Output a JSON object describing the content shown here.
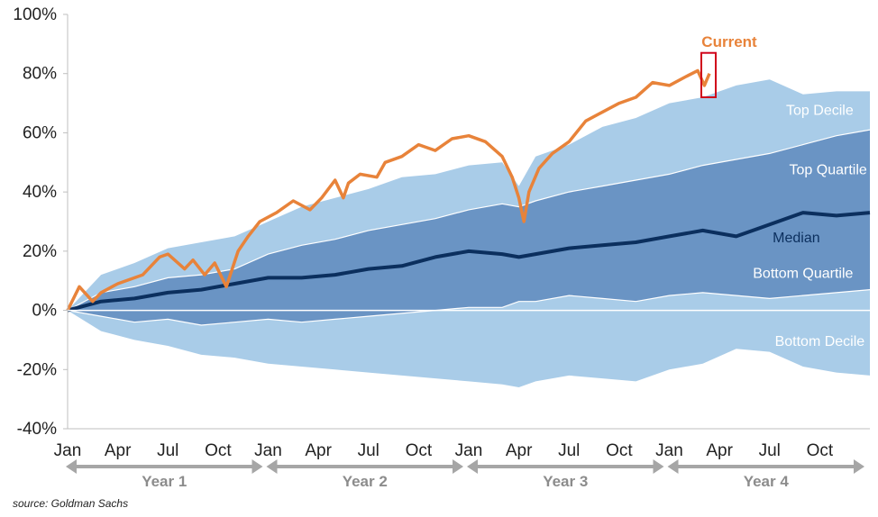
{
  "chart_data": {
    "type": "area",
    "source": "source: Goldman Sachs",
    "ylim": [
      -40,
      100
    ],
    "y_ticks": [
      -40,
      -20,
      0,
      20,
      40,
      60,
      80,
      100
    ],
    "y_tick_labels": [
      "-40%",
      "-20%",
      "0%",
      "20%",
      "40%",
      "60%",
      "80%",
      "100%"
    ],
    "x_month_labels": [
      "Jan",
      "Apr",
      "Jul",
      "Oct",
      "Jan",
      "Apr",
      "Jul",
      "Oct",
      "Jan",
      "Apr",
      "Jul",
      "Oct",
      "Jan",
      "Apr",
      "Jul",
      "Oct"
    ],
    "x_month_positions": [
      0,
      3,
      6,
      9,
      12,
      15,
      18,
      21,
      24,
      27,
      30,
      33,
      36,
      39,
      42,
      45
    ],
    "x_max_month": 48,
    "year_labels": [
      "Year 1",
      "Year 2",
      "Year 3",
      "Year 4"
    ],
    "bands": [
      {
        "name": "Top Decile",
        "color": "#a9cce8",
        "label_x": 45,
        "label_y": 66
      },
      {
        "name": "Top Quartile",
        "color": "#6a94c4",
        "label_x": 45.5,
        "label_y": 46
      },
      {
        "name": "Bottom Quartile",
        "color": "#6a94c4",
        "label_x": 44,
        "label_y": 11
      },
      {
        "name": "Bottom Decile",
        "color": "#a9cce8",
        "label_x": 45,
        "label_y": -12
      }
    ],
    "series": [
      {
        "name": "Top Decile",
        "x": [
          0,
          2,
          4,
          6,
          8,
          10,
          12,
          14,
          16,
          18,
          20,
          22,
          24,
          26,
          27,
          28,
          30,
          32,
          34,
          36,
          38,
          40,
          42,
          44,
          46,
          48
        ],
        "values": [
          0,
          12,
          16,
          21,
          23,
          25,
          30,
          35,
          38,
          41,
          45,
          46,
          49,
          50,
          42,
          52,
          56,
          62,
          65,
          70,
          72,
          76,
          78,
          73,
          74,
          74
        ]
      },
      {
        "name": "Top Quartile",
        "x": [
          0,
          2,
          4,
          6,
          8,
          10,
          12,
          14,
          16,
          18,
          20,
          22,
          24,
          26,
          27,
          28,
          30,
          32,
          34,
          36,
          38,
          40,
          42,
          44,
          46,
          48
        ],
        "values": [
          0,
          6,
          8,
          11,
          12,
          14,
          19,
          22,
          24,
          27,
          29,
          31,
          34,
          36,
          35,
          37,
          40,
          42,
          44,
          46,
          49,
          51,
          53,
          56,
          59,
          61
        ]
      },
      {
        "name": "Median",
        "x": [
          0,
          2,
          4,
          6,
          8,
          10,
          12,
          14,
          16,
          18,
          20,
          22,
          24,
          26,
          27,
          28,
          30,
          32,
          34,
          36,
          38,
          40,
          42,
          44,
          46,
          48
        ],
        "values": [
          0,
          3,
          4,
          6,
          7,
          9,
          11,
          11,
          12,
          14,
          15,
          18,
          20,
          19,
          18,
          19,
          21,
          22,
          23,
          25,
          27,
          25,
          29,
          33,
          32,
          33
        ]
      },
      {
        "name": "Bottom Quartile",
        "x": [
          0,
          2,
          4,
          6,
          8,
          10,
          12,
          14,
          16,
          18,
          20,
          22,
          24,
          26,
          27,
          28,
          30,
          32,
          34,
          36,
          38,
          40,
          42,
          44,
          46,
          48
        ],
        "values": [
          0,
          -2,
          -4,
          -3,
          -5,
          -4,
          -3,
          -4,
          -3,
          -2,
          -1,
          0,
          1,
          1,
          3,
          3,
          5,
          4,
          3,
          5,
          6,
          5,
          4,
          5,
          6,
          7
        ]
      },
      {
        "name": "Bottom Decile",
        "x": [
          0,
          2,
          4,
          6,
          8,
          10,
          12,
          14,
          16,
          18,
          20,
          22,
          24,
          26,
          27,
          28,
          30,
          32,
          34,
          36,
          38,
          40,
          42,
          44,
          46,
          48
        ],
        "values": [
          0,
          -7,
          -10,
          -12,
          -15,
          -16,
          -18,
          -19,
          -20,
          -21,
          -22,
          -23,
          -24,
          -25,
          -26,
          -24,
          -22,
          -23,
          -24,
          -20,
          -18,
          -13,
          -14,
          -19,
          -21,
          -22
        ]
      },
      {
        "name": "Current",
        "x": [
          0,
          0.7,
          1.5,
          2,
          3,
          4.5,
          5.5,
          6,
          7,
          7.5,
          8.2,
          8.8,
          9.5,
          10.2,
          10.8,
          11.5,
          12.5,
          13.5,
          14.5,
          15.2,
          16,
          16.5,
          16.8,
          17.5,
          18.5,
          19,
          20,
          21,
          22,
          23,
          24,
          25,
          26,
          26.6,
          27,
          27.3,
          27.6,
          28.2,
          29,
          30,
          31,
          32,
          33,
          34,
          35,
          36,
          37,
          37.7,
          38.1,
          38.4
        ],
        "values": [
          0,
          8,
          3,
          6,
          9,
          12,
          18,
          19,
          14,
          17,
          12,
          16,
          8,
          20,
          25,
          30,
          33,
          37,
          34,
          38,
          44,
          38,
          43,
          46,
          45,
          50,
          52,
          56,
          54,
          58,
          59,
          57,
          52,
          45,
          38,
          30,
          40,
          48,
          53,
          57,
          64,
          67,
          70,
          72,
          77,
          76,
          79,
          81,
          76,
          80
        ]
      }
    ]
  }
}
